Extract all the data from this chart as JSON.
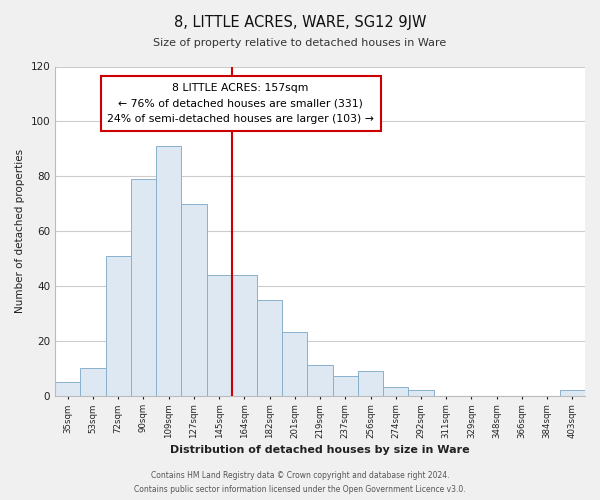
{
  "title": "8, LITTLE ACRES, WARE, SG12 9JW",
  "subtitle": "Size of property relative to detached houses in Ware",
  "xlabel": "Distribution of detached houses by size in Ware",
  "ylabel": "Number of detached properties",
  "bar_labels": [
    "35sqm",
    "53sqm",
    "72sqm",
    "90sqm",
    "109sqm",
    "127sqm",
    "145sqm",
    "164sqm",
    "182sqm",
    "201sqm",
    "219sqm",
    "237sqm",
    "256sqm",
    "274sqm",
    "292sqm",
    "311sqm",
    "329sqm",
    "348sqm",
    "366sqm",
    "384sqm",
    "403sqm"
  ],
  "bar_values": [
    5,
    10,
    51,
    79,
    91,
    70,
    44,
    44,
    35,
    23,
    11,
    7,
    9,
    3,
    2,
    0,
    0,
    0,
    0,
    0,
    2
  ],
  "bar_color": "#dde8f3",
  "bar_edge_color": "#8ab0cc",
  "vline_color": "#cc0000",
  "ylim": [
    0,
    120
  ],
  "annotation_title": "8 LITTLE ACRES: 157sqm",
  "annotation_line1": "← 76% of detached houses are smaller (331)",
  "annotation_line2": "24% of semi-detached houses are larger (103) →",
  "annotation_box_color": "#ffffff",
  "annotation_box_edge": "#cc0000",
  "footer_line1": "Contains HM Land Registry data © Crown copyright and database right 2024.",
  "footer_line2": "Contains public sector information licensed under the Open Government Licence v3.0.",
  "background_color": "#f0f0f0",
  "plot_background": "#ffffff",
  "grid_color": "#cccccc"
}
